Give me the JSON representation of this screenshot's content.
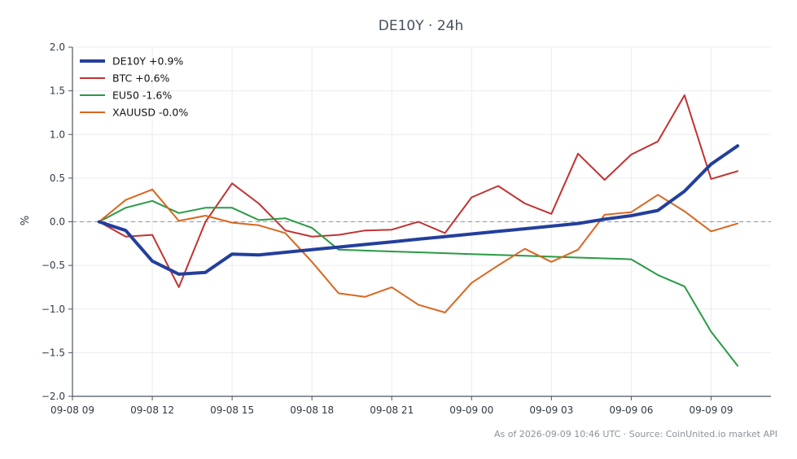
{
  "chart_data": {
    "type": "line",
    "title": "DE10Y · 24h",
    "subtitle": "",
    "xlabel": "",
    "ylabel": "%",
    "ylim": [
      -2.0,
      2.0
    ],
    "yticks": [
      -2.0,
      -1.5,
      -1.0,
      -0.5,
      0.0,
      0.5,
      1.0,
      1.5,
      2.0
    ],
    "ytick_labels": [
      "−2.0",
      "−1.5",
      "−1.0",
      "−0.5",
      "0.0",
      "0.5",
      "1.0",
      "1.5",
      "2.0"
    ],
    "xlim": [
      "2026-09-08 09:00",
      "2026-09-09 11:15"
    ],
    "xticks": [
      "2026-09-08 09:00",
      "2026-09-08 12:00",
      "2026-09-08 15:00",
      "2026-09-08 18:00",
      "2026-09-08 21:00",
      "2026-09-09 00:00",
      "2026-09-09 03:00",
      "2026-09-09 06:00",
      "2026-09-09 09:00"
    ],
    "xtick_labels": [
      "09-08 09",
      "09-08 12",
      "09-08 15",
      "09-08 18",
      "09-08 21",
      "09-09 00",
      "09-09 03",
      "09-09 06",
      "09-09 09"
    ],
    "x": [
      "2026-09-08 10:00",
      "2026-09-08 11:00",
      "2026-09-08 12:00",
      "2026-09-08 13:00",
      "2026-09-08 14:00",
      "2026-09-08 15:00",
      "2026-09-08 16:00",
      "2026-09-08 17:00",
      "2026-09-08 18:00",
      "2026-09-08 19:00",
      "2026-09-08 20:00",
      "2026-09-08 21:00",
      "2026-09-08 22:00",
      "2026-09-08 23:00",
      "2026-09-09 00:00",
      "2026-09-09 01:00",
      "2026-09-09 02:00",
      "2026-09-09 03:00",
      "2026-09-09 04:00",
      "2026-09-09 05:00",
      "2026-09-09 06:00",
      "2026-09-09 07:00",
      "2026-09-09 08:00",
      "2026-09-09 09:00",
      "2026-09-09 10:00"
    ],
    "grid": true,
    "zero_line": true,
    "legend_position": "top-left",
    "series": [
      {
        "name": "DE10Y +0.9%",
        "color": "#233f9c",
        "emphasis": true,
        "values": [
          0.0,
          -0.1,
          -0.45,
          -0.6,
          -0.58,
          -0.37,
          -0.38,
          -0.35,
          -0.32,
          -0.29,
          -0.26,
          -0.23,
          -0.2,
          -0.17,
          -0.14,
          -0.11,
          -0.08,
          -0.05,
          -0.02,
          0.03,
          0.07,
          0.13,
          0.35,
          0.66,
          0.87
        ]
      },
      {
        "name": "BTC +0.6%",
        "color": "#c23232",
        "values": [
          0.0,
          -0.17,
          -0.15,
          -0.75,
          0.0,
          0.44,
          0.21,
          -0.1,
          -0.17,
          -0.15,
          -0.1,
          -0.09,
          0.0,
          -0.13,
          0.28,
          0.41,
          0.21,
          0.09,
          0.78,
          0.48,
          0.77,
          0.92,
          1.45,
          0.49,
          0.58
        ]
      },
      {
        "name": "EU50 -1.6%",
        "color": "#2a9a45",
        "values": [
          0.0,
          0.16,
          0.24,
          0.1,
          0.16,
          0.16,
          0.02,
          0.04,
          -0.07,
          -0.32,
          -0.33,
          -0.34,
          -0.35,
          -0.36,
          -0.37,
          -0.38,
          -0.39,
          -0.4,
          -0.41,
          -0.42,
          -0.43,
          -0.61,
          -0.74,
          -1.26,
          -1.65
        ]
      },
      {
        "name": "XAUUSD -0.0%",
        "color": "#d9661f",
        "values": [
          0.0,
          0.25,
          0.37,
          0.01,
          0.07,
          -0.01,
          -0.04,
          -0.13,
          -0.46,
          -0.82,
          -0.86,
          -0.75,
          -0.95,
          -1.04,
          -0.7,
          -0.5,
          -0.31,
          -0.46,
          -0.32,
          0.08,
          0.11,
          0.31,
          0.12,
          -0.11,
          -0.02
        ]
      }
    ]
  },
  "footer": {
    "text": "As of 2026-09-09 10:46 UTC · Source: CoinUnited.io market API"
  }
}
